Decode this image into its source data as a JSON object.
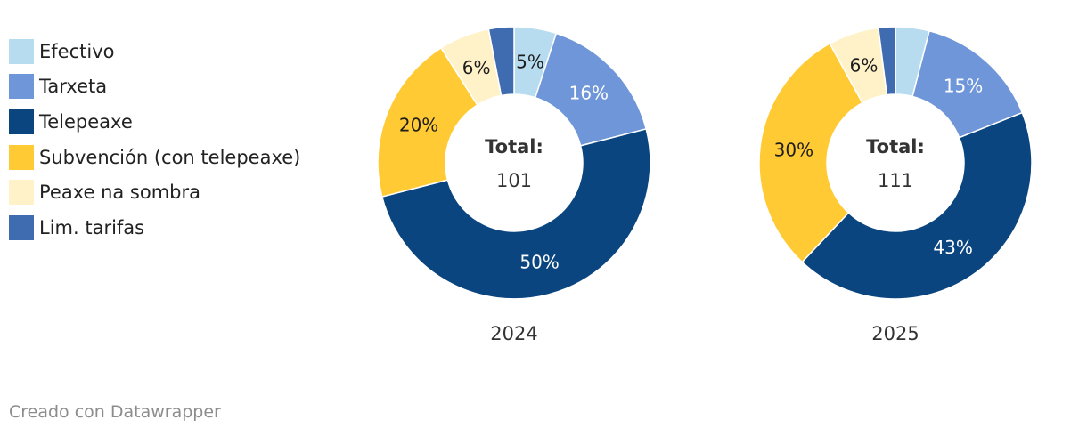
{
  "legend": [
    {
      "label": "Efectivo",
      "color": "#b8dcef"
    },
    {
      "label": "Tarxeta",
      "color": "#6f96d9"
    },
    {
      "label": "Telepeaxe",
      "color": "#0a4580"
    },
    {
      "label": "Subvención (con telepeaxe)",
      "color": "#ffca33"
    },
    {
      "label": "Peaxe na sombra",
      "color": "#fff2c9"
    },
    {
      "label": "Lim. tarifas",
      "color": "#3f6bb0"
    }
  ],
  "chart_data": {
    "type": "pie",
    "variant": "donut",
    "categories": [
      "Efectivo",
      "Tarxeta",
      "Telepeaxe",
      "Subvención (con telepeaxe)",
      "Peaxe na sombra",
      "Lim. tarifas"
    ],
    "charts": [
      {
        "label": "2024",
        "total_label": "Total:",
        "total": "101",
        "values": [
          5,
          16,
          50,
          20,
          6,
          3
        ],
        "data_labels": [
          "5%",
          "16%",
          "50%",
          "20%",
          "6%",
          ""
        ]
      },
      {
        "label": "2025",
        "total_label": "Total:",
        "total": "111",
        "values": [
          4,
          15,
          43,
          30,
          6,
          2
        ],
        "data_labels": [
          "",
          "15%",
          "43%",
          "30%",
          "6%",
          ""
        ]
      }
    ]
  },
  "footer": "Creado con Datawrapper"
}
